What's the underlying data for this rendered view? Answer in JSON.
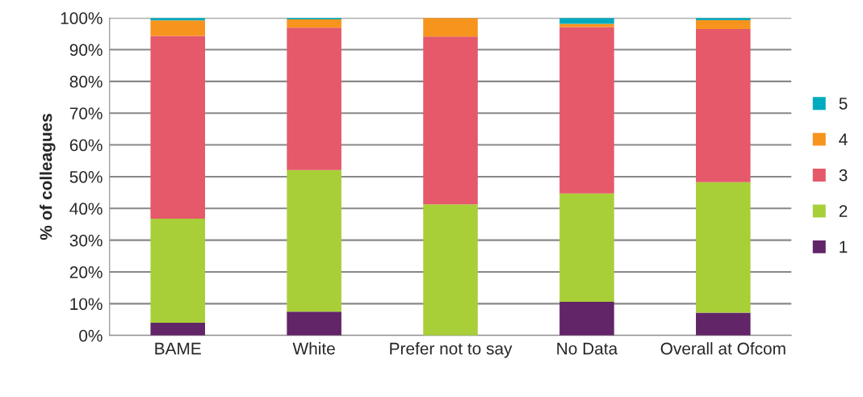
{
  "chart_data": {
    "type": "bar",
    "stacked": true,
    "ylabel": "% of colleagues",
    "categories": [
      "BAME",
      "White",
      "Prefer not to say",
      "No Data",
      "Overall at Ofcom"
    ],
    "series": [
      {
        "name": "1",
        "color": "#622567",
        "values": [
          4.0,
          7.5,
          null,
          10.6,
          7.2
        ]
      },
      {
        "name": "2",
        "color": "#a8cf38",
        "values": [
          32.8,
          44.6,
          41.3,
          34.1,
          41.1
        ]
      },
      {
        "name": "3",
        "color": "#e5596a",
        "values": [
          57.5,
          44.8,
          52.8,
          52.4,
          48.2
        ]
      },
      {
        "name": "4",
        "color": "#f7941d",
        "values": [
          4.9,
          2.6,
          5.9,
          1.0,
          2.8
        ]
      },
      {
        "name": "5",
        "color": "#00abc0",
        "values": [
          0.8,
          0.5,
          null,
          1.9,
          0.7
        ]
      }
    ],
    "ylim": [
      0,
      100
    ],
    "yticks": [
      {
        "value": 0,
        "label": "0%"
      },
      {
        "value": 10,
        "label": "10%"
      },
      {
        "value": 20,
        "label": "20%"
      },
      {
        "value": 30,
        "label": "30%"
      },
      {
        "value": 40,
        "label": "40%"
      },
      {
        "value": 50,
        "label": "50%"
      },
      {
        "value": 60,
        "label": "60%"
      },
      {
        "value": 70,
        "label": "70%"
      },
      {
        "value": 80,
        "label": "80%"
      },
      {
        "value": 90,
        "label": "90%"
      },
      {
        "value": 100,
        "label": "100%"
      }
    ],
    "grid": "y",
    "legend": "right"
  }
}
